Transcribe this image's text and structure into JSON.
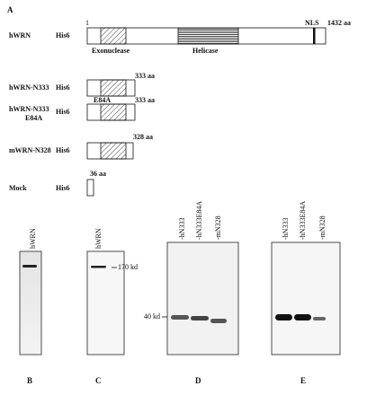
{
  "panel_a": {
    "label": "A",
    "start": "1",
    "domains": {
      "exonuclease": "Exonuclease",
      "helicase": "Helicase",
      "nls": "NLS"
    },
    "constructs": [
      {
        "name": [
          "hWRN"
        ],
        "tag": "His6",
        "end": "1432 aa"
      },
      {
        "name": [
          "hWRN-N333"
        ],
        "tag": "His6",
        "end": "333 aa"
      },
      {
        "name": [
          "hWRN-N333",
          "E84A"
        ],
        "tag": "His6",
        "end": "333 aa",
        "mutation": "E84A"
      },
      {
        "name": [
          "mWRN-N328"
        ],
        "tag": "His6",
        "end": "328 aa"
      },
      {
        "name": [
          "Mock"
        ],
        "tag": "His6",
        "end": "36 aa"
      }
    ]
  },
  "panel_b": {
    "label": "B",
    "lanes": [
      "hWRN"
    ]
  },
  "panel_c": {
    "label": "C",
    "lanes": [
      "hWRN"
    ],
    "marker": "170 kd"
  },
  "panel_d": {
    "label": "D",
    "lanes": [
      "-hN333",
      "-hN333E84A",
      "-mN328"
    ],
    "marker": "40 kd"
  },
  "panel_e": {
    "label": "E",
    "lanes": [
      "-hN333",
      "-hN333E84A",
      "-mN328"
    ]
  }
}
